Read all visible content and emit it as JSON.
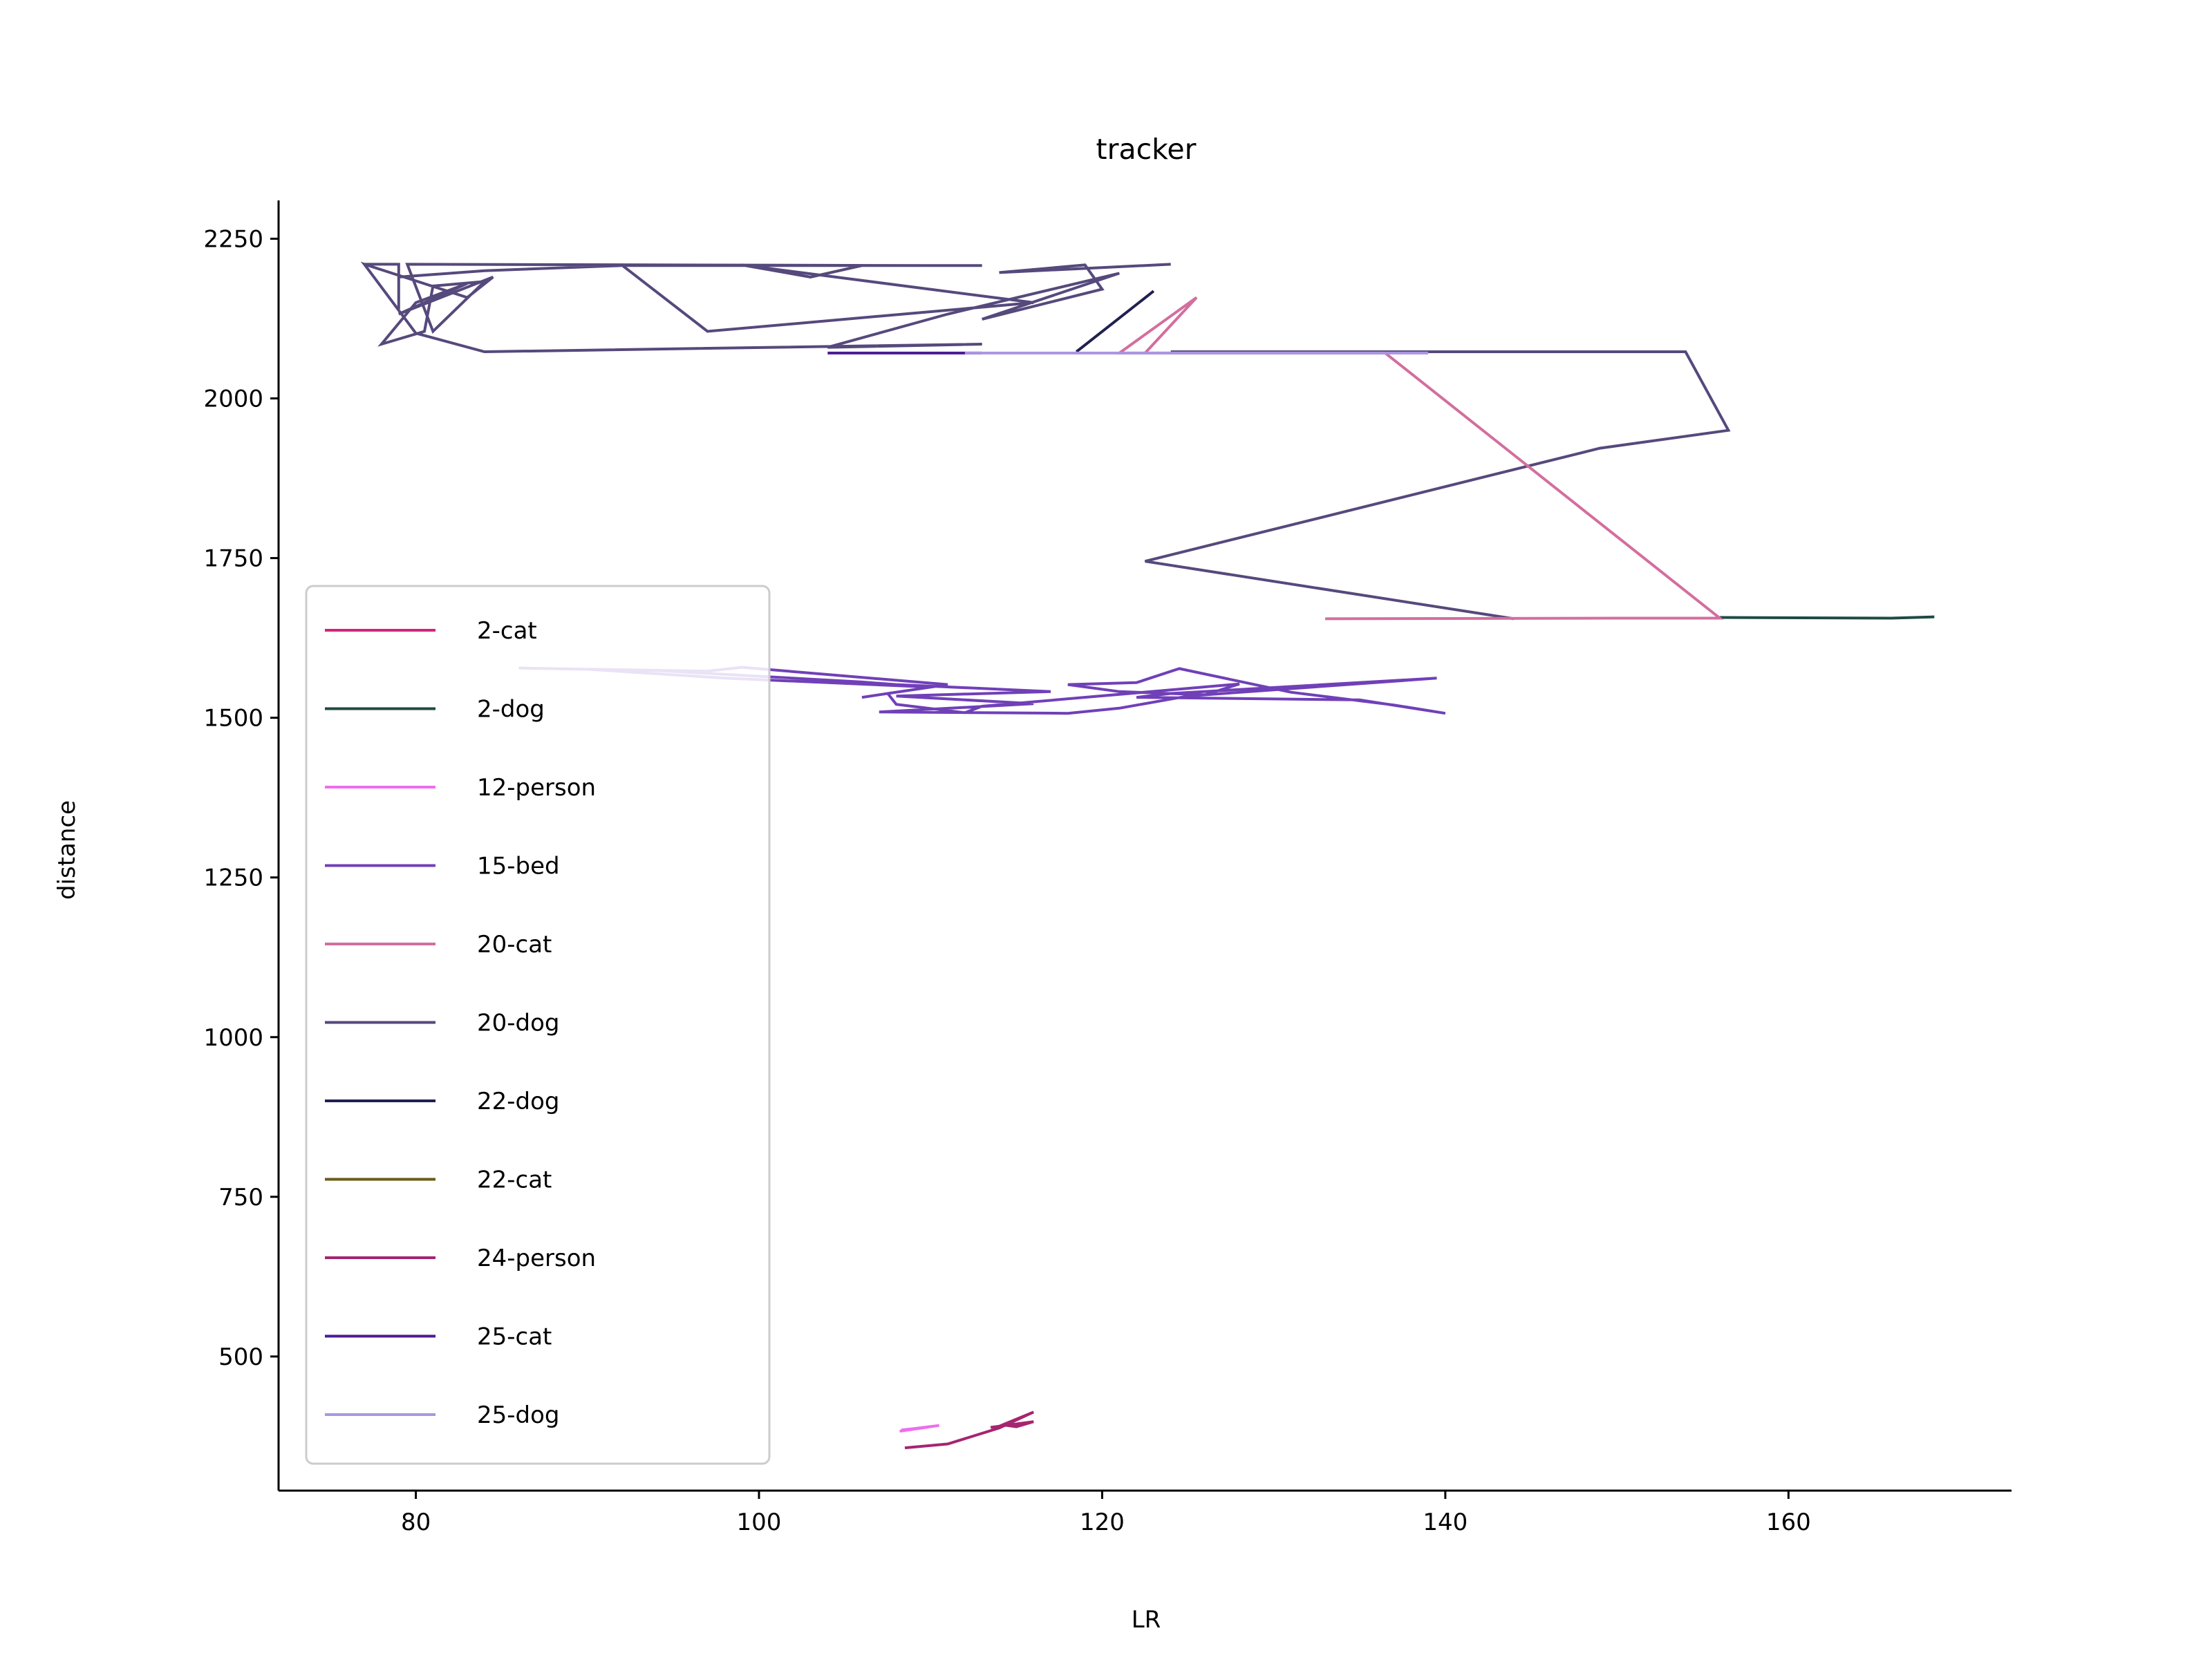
{
  "chart_data": {
    "type": "line",
    "title": "tracker",
    "xlabel": "LR",
    "ylabel": "distance",
    "xlim": [
      72,
      173
    ],
    "ylim": [
      290,
      2310
    ],
    "xticks": [
      80,
      100,
      120,
      140,
      160
    ],
    "yticks": [
      500,
      750,
      1000,
      1250,
      1500,
      1750,
      2000,
      2250
    ],
    "grid": false,
    "legend_position": "lower-left",
    "series": [
      {
        "name": "2-cat",
        "color": "#d4237a",
        "points": []
      },
      {
        "name": "2-dog",
        "color": "#1f4a42",
        "points": [
          [
            156,
            1657
          ],
          [
            166,
            1656
          ],
          [
            168.5,
            1658
          ]
        ]
      },
      {
        "name": "12-person",
        "color": "#ee6dee",
        "points": [
          [
            108.2,
            383
          ],
          [
            109.5,
            388
          ],
          [
            110.5,
            392
          ],
          [
            109,
            387
          ],
          [
            108.3,
            385
          ]
        ]
      },
      {
        "name": "15-bed",
        "color": "#7040b8",
        "points": [
          [
            86,
            1578
          ],
          [
            94,
            1574
          ],
          [
            106,
            1556
          ],
          [
            108,
            1552
          ],
          [
            117,
            1541
          ],
          [
            108,
            1534
          ],
          [
            116,
            1522
          ],
          [
            107,
            1509
          ],
          [
            118,
            1507
          ],
          [
            121,
            1515
          ],
          [
            125,
            1534
          ],
          [
            139.5,
            1562
          ],
          [
            124,
            1538
          ],
          [
            122,
            1532
          ],
          [
            135,
            1528
          ],
          [
            140,
            1507
          ],
          [
            137,
            1520
          ],
          [
            131,
            1540
          ],
          [
            124.5,
            1577
          ],
          [
            122,
            1555
          ],
          [
            118,
            1552
          ],
          [
            121,
            1541
          ],
          [
            126,
            1536
          ],
          [
            128,
            1553
          ],
          [
            113,
            1518
          ],
          [
            112,
            1508
          ],
          [
            108,
            1521
          ],
          [
            107.5,
            1538
          ],
          [
            110,
            1548
          ],
          [
            98,
            1562
          ],
          [
            90,
            1576
          ],
          [
            97,
            1573
          ],
          [
            99,
            1579
          ],
          [
            111,
            1552
          ],
          [
            106,
            1532
          ]
        ]
      },
      {
        "name": "20-cat",
        "color": "#d36e9e",
        "points": [
          [
            133,
            1655
          ],
          [
            150,
            1656
          ],
          [
            156,
            1656
          ],
          [
            136.5,
            2071
          ],
          [
            122.5,
            2071
          ],
          [
            121,
            2071
          ],
          [
            125.5,
            2158
          ],
          [
            122.5,
            2071
          ]
        ]
      },
      {
        "name": "20-dog",
        "color": "#56497c",
        "points": [
          [
            124,
            2210
          ],
          [
            114,
            2197
          ],
          [
            119,
            2209
          ],
          [
            120,
            2171
          ],
          [
            113,
            2124
          ],
          [
            121,
            2196
          ],
          [
            111,
            2132
          ],
          [
            104,
            2080
          ],
          [
            113,
            2085
          ],
          [
            84,
            2073
          ],
          [
            80,
            2102
          ],
          [
            77,
            2210
          ],
          [
            83,
            2158
          ],
          [
            84.5,
            2190
          ],
          [
            79,
            2132
          ],
          [
            83,
            2180
          ],
          [
            80,
            2150
          ],
          [
            78,
            2085
          ],
          [
            80.5,
            2105
          ],
          [
            81,
            2176
          ],
          [
            84,
            2183
          ],
          [
            81,
            2105
          ],
          [
            79.5,
            2210
          ],
          [
            110,
            2208
          ],
          [
            92,
            2209
          ],
          [
            97,
            2105
          ],
          [
            116,
            2150
          ],
          [
            99,
            2209
          ],
          [
            103,
            2190
          ],
          [
            106,
            2208
          ],
          [
            113,
            2208
          ],
          [
            92,
            2208
          ],
          [
            84,
            2200
          ],
          [
            79,
            2190
          ],
          [
            79,
            2140
          ],
          [
            79,
            2210
          ],
          [
            77,
            2210
          ]
        ]
      },
      {
        "name": "22-dog",
        "color": "#212050",
        "points": [
          [
            118.5,
            2073
          ],
          [
            123,
            2168
          ]
        ]
      },
      {
        "name": "22-cat",
        "color": "#6b5a16",
        "points": []
      },
      {
        "name": "24-person",
        "color": "#a52570",
        "points": [
          [
            108.5,
            357
          ],
          [
            111,
            363
          ],
          [
            114,
            388
          ],
          [
            116,
            413
          ],
          [
            114.2,
            393
          ],
          [
            115,
            390
          ],
          [
            116,
            398
          ],
          [
            113.5,
            389
          ]
        ]
      },
      {
        "name": "25-cat",
        "color": "#4a1a96",
        "points": [
          [
            104,
            2071
          ],
          [
            113,
            2071
          ],
          [
            108,
            2071
          ],
          [
            105.5,
            2071
          ]
        ]
      },
      {
        "name": "25-dog",
        "color": "#a996e0",
        "points": [
          [
            113,
            2071
          ],
          [
            139,
            2071
          ],
          [
            117,
            2071
          ],
          [
            112,
            2071
          ]
        ]
      }
    ],
    "extra_20dog_path": [
      [
        144,
        1655
      ],
      [
        122.5,
        1745
      ],
      [
        149,
        1922
      ],
      [
        156.5,
        1950
      ],
      [
        154,
        2073
      ],
      [
        138,
        2073
      ],
      [
        124,
        2073
      ]
    ]
  }
}
